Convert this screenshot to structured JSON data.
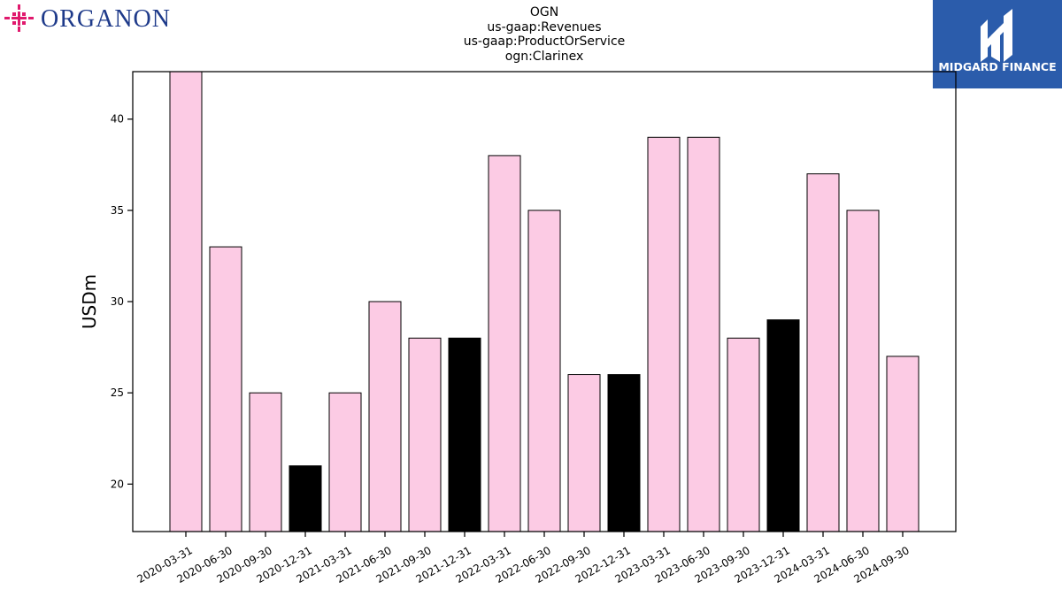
{
  "header": {
    "title_lines": [
      "OGN",
      "us-gaap:Revenues",
      "us-gaap:ProductOrService",
      "ogn:Clarinex"
    ],
    "logo_left_text": "ORGANON",
    "logo_right_text": "MIDGARD FINANCE"
  },
  "colors": {
    "normal_bar": "#fccbe4",
    "year_end_bar": "#000000",
    "logo_left_icon": "#e0196d",
    "logo_left_text": "#1e3a8a",
    "logo_right_bg": "#2b5cab"
  },
  "chart_data": {
    "type": "bar",
    "title": "OGN\nus-gaap:Revenues\nus-gaap:ProductOrService\nogn:Clarinex",
    "xlabel": "",
    "ylabel": "USDm",
    "ylim": [
      17.4,
      42.6
    ],
    "yticks": [
      20,
      25,
      30,
      35,
      40
    ],
    "categories": [
      "2020-03-31",
      "2020-06-30",
      "2020-09-30",
      "2020-12-31",
      "2021-03-31",
      "2021-06-30",
      "2021-09-30",
      "2021-12-31",
      "2022-03-31",
      "2022-06-30",
      "2022-09-30",
      "2022-12-31",
      "2023-03-31",
      "2023-06-30",
      "2023-09-30",
      "2023-12-31",
      "2024-03-31",
      "2024-06-30",
      "2024-09-30"
    ],
    "values": [
      43,
      33,
      25,
      21,
      25,
      30,
      28,
      28,
      38,
      35,
      26,
      26,
      39,
      39,
      28,
      29,
      37,
      35,
      27
    ],
    "highlight": [
      false,
      false,
      false,
      true,
      false,
      false,
      false,
      true,
      false,
      false,
      false,
      true,
      false,
      false,
      false,
      true,
      false,
      false,
      false
    ],
    "grid": false,
    "legend": "none"
  }
}
